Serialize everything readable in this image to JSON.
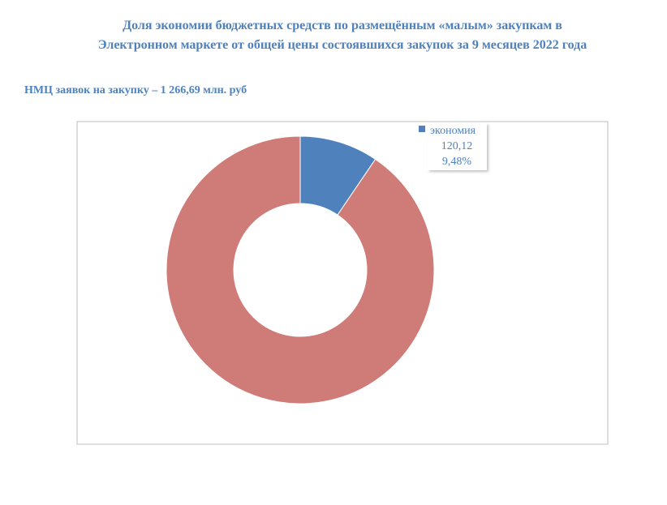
{
  "chart_data": {
    "type": "donut",
    "title": "Доля экономии бюджетных средств по размещённым «малым» закупкам в\nЭлектронном маркете от общей цены состоявшихся закупок за 9 месяцев 2022 года",
    "subtitle": "НМЦ заявок на закупку – 1 266,69 млн. руб",
    "categories": [
      "экономия",
      null
    ],
    "values": [
      120.12,
      1146.57
    ],
    "value_labels": [
      "120,12",
      null
    ],
    "percent_labels": [
      "9,48%",
      null
    ],
    "colors": [
      "#4f81bd",
      "#cf7b77"
    ]
  }
}
